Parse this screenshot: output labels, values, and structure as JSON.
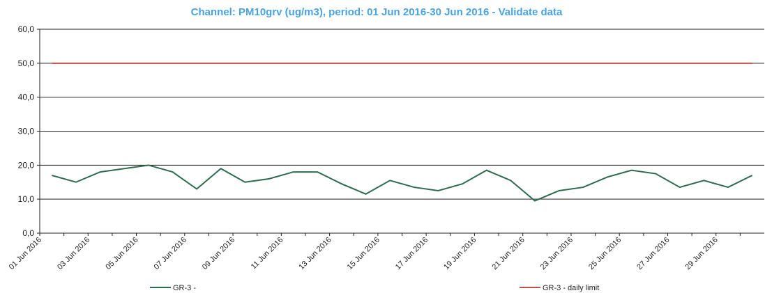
{
  "chart_data": {
    "type": "line",
    "title": "Channel: PM10grv (ug/m3), period: 01 Jun 2016-30 Jun 2016 - Validate data",
    "categories": [
      "01 Jun 2016",
      null,
      "03 Jun 2016",
      null,
      "05 Jun 2016",
      null,
      "07 Jun 2016",
      null,
      "09 Jun 2016",
      null,
      "11 Jun 2016",
      null,
      "13 Jun 2016",
      null,
      "15 Jun 2016",
      null,
      "17 Jun 2016",
      null,
      "19 Jun 2016",
      null,
      "21 Jun 2016",
      null,
      "23 Jun 2016",
      null,
      "25 Jun 2016",
      null,
      "27 Jun 2016",
      null,
      "29 Jun 2016",
      null
    ],
    "series": [
      {
        "name": "GR-3 -",
        "color": "#2e6b4e",
        "values": [
          17,
          15,
          18,
          19,
          20,
          18,
          13,
          19,
          15,
          16,
          18,
          18,
          14.5,
          11.5,
          15.5,
          13.5,
          12.5,
          14.5,
          18.5,
          15.5,
          9.5,
          12.5,
          13.5,
          16.5,
          18.5,
          17.5,
          13.5,
          15.5,
          13.5,
          17
        ]
      },
      {
        "name": "GR-3 - daily limit",
        "color": "#c0504d",
        "values": [
          50,
          50,
          50,
          50,
          50,
          50,
          50,
          50,
          50,
          50,
          50,
          50,
          50,
          50,
          50,
          50,
          50,
          50,
          50,
          50,
          50,
          50,
          50,
          50,
          50,
          50,
          50,
          50,
          50,
          50
        ]
      }
    ],
    "ylim": [
      0,
      60
    ],
    "yticks": [
      {
        "value": 0,
        "label": "0,0"
      },
      {
        "value": 10,
        "label": "10,0"
      },
      {
        "value": 20,
        "label": "20,0"
      },
      {
        "value": 30,
        "label": "30,0"
      },
      {
        "value": 40,
        "label": "40,0"
      },
      {
        "value": 50,
        "label": "50,0"
      },
      {
        "value": 60,
        "label": "60,0"
      }
    ],
    "grid": true
  }
}
